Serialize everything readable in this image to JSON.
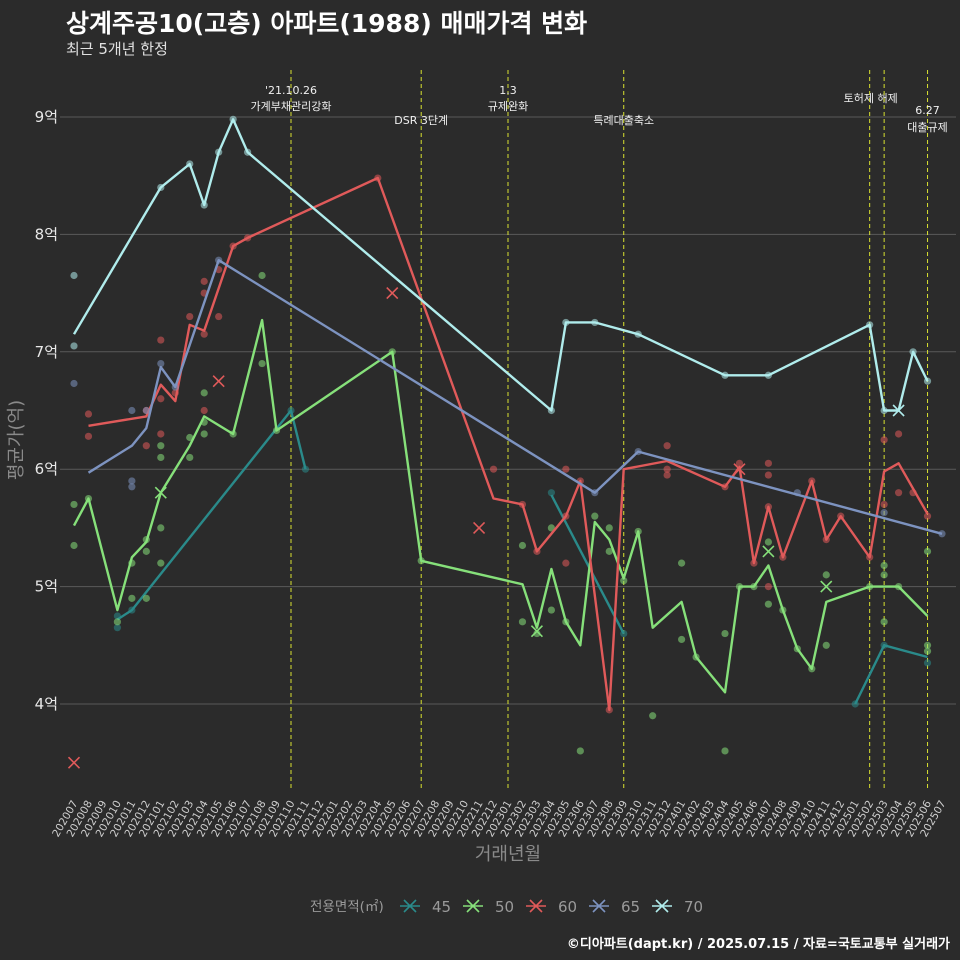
{
  "title": "상계주공10(고층) 아파트(1988) 매매가격 변화",
  "subtitle": "최근 5개년 한정",
  "caption": "©디아파트(dapt.kr) / 2025.07.15 / 자료=국토교통부 실거래가",
  "chart_data": {
    "type": "line",
    "xlabel": "거래년월",
    "ylabel": "평균가(억)",
    "ylim": [
      3.2,
      9.55
    ],
    "yticks": [
      {
        "value": 4,
        "label": "4억"
      },
      {
        "value": 5,
        "label": "5억"
      },
      {
        "value": 6,
        "label": "6억"
      },
      {
        "value": 7,
        "label": "7억"
      },
      {
        "value": 8,
        "label": "8억"
      },
      {
        "value": 9,
        "label": "9억"
      }
    ],
    "categories": [
      "202007",
      "202008",
      "202009",
      "202010",
      "202011",
      "202012",
      "202101",
      "202102",
      "202103",
      "202104",
      "202105",
      "202106",
      "202107",
      "202108",
      "202109",
      "202110",
      "202111",
      "202112",
      "202201",
      "202202",
      "202203",
      "202204",
      "202205",
      "202206",
      "202207",
      "202208",
      "202209",
      "202210",
      "202211",
      "202212",
      "202301",
      "202302",
      "202303",
      "202304",
      "202305",
      "202306",
      "202307",
      "202308",
      "202309",
      "202310",
      "202311",
      "202312",
      "202401",
      "202402",
      "202403",
      "202404",
      "202405",
      "202406",
      "202407",
      "202408",
      "202409",
      "202410",
      "202411",
      "202412",
      "202501",
      "202502",
      "202503",
      "202504",
      "202505",
      "202506",
      "202507"
    ],
    "legend": {
      "title": "전용면적(㎡)",
      "position": "bottom"
    },
    "series": [
      {
        "name": "45",
        "color": "#2a8a8a",
        "line": [
          [
            "202010",
            4.72
          ],
          [
            "202011",
            4.8
          ],
          [
            "202110",
            6.5
          ],
          [
            "202111",
            6.0
          ]
        ],
        "line2": [
          [
            "202304",
            5.78
          ],
          [
            "202309",
            4.6
          ]
        ],
        "line3": [
          [
            "202501",
            4.0
          ],
          [
            "202503",
            4.5
          ],
          [
            "202506",
            4.4
          ]
        ],
        "points": [
          [
            "202010",
            4.65
          ],
          [
            "202010",
            4.75
          ],
          [
            "202011",
            4.8
          ],
          [
            "202110",
            6.5
          ],
          [
            "202111",
            6.0
          ],
          [
            "202304",
            5.8
          ],
          [
            "202309",
            4.6
          ],
          [
            "202501",
            4.0
          ],
          [
            "202503",
            4.5
          ],
          [
            "202506",
            4.35
          ]
        ],
        "cancelled": []
      },
      {
        "name": "50",
        "color": "#86e07a",
        "line": [
          [
            "202007",
            5.52
          ],
          [
            "202008",
            5.75
          ],
          [
            "202010",
            4.8
          ],
          [
            "202011",
            5.25
          ],
          [
            "202012",
            5.38
          ],
          [
            "202101",
            5.8
          ],
          [
            "202103",
            6.2
          ],
          [
            "202104",
            6.45
          ],
          [
            "202106",
            6.3
          ],
          [
            "202108",
            7.27
          ],
          [
            "202109",
            6.33
          ],
          [
            "202205",
            7.0
          ],
          [
            "202207",
            5.22
          ],
          [
            "202302",
            5.02
          ],
          [
            "202303",
            4.65
          ],
          [
            "202304",
            5.15
          ],
          [
            "202305",
            4.7
          ],
          [
            "202306",
            4.5
          ],
          [
            "202307",
            5.55
          ],
          [
            "202308",
            5.4
          ],
          [
            "202309",
            5.07
          ],
          [
            "202310",
            5.47
          ],
          [
            "202311",
            4.65
          ],
          [
            "202401",
            4.87
          ],
          [
            "202402",
            4.4
          ],
          [
            "202404",
            4.1
          ],
          [
            "202405",
            5.0
          ],
          [
            "202406",
            5.0
          ],
          [
            "202407",
            5.18
          ],
          [
            "202408",
            4.8
          ],
          [
            "202409",
            4.47
          ],
          [
            "202410",
            4.3
          ],
          [
            "202411",
            4.87
          ],
          [
            "202502",
            5.0
          ],
          [
            "202503",
            5.0
          ],
          [
            "202504",
            5.0
          ],
          [
            "202506",
            4.75
          ]
        ],
        "points": [
          [
            "202007",
            5.7
          ],
          [
            "202007",
            5.35
          ],
          [
            "202008",
            5.75
          ],
          [
            "202010",
            4.7
          ],
          [
            "202011",
            4.9
          ],
          [
            "202011",
            5.2
          ],
          [
            "202012",
            5.3
          ],
          [
            "202012",
            5.4
          ],
          [
            "202012",
            4.9
          ],
          [
            "202101",
            6.1
          ],
          [
            "202101",
            6.2
          ],
          [
            "202101",
            5.5
          ],
          [
            "202101",
            5.2
          ],
          [
            "202103",
            6.27
          ],
          [
            "202103",
            6.1
          ],
          [
            "202104",
            6.65
          ],
          [
            "202104",
            6.4
          ],
          [
            "202104",
            6.3
          ],
          [
            "202106",
            6.3
          ],
          [
            "202108",
            7.65
          ],
          [
            "202108",
            6.9
          ],
          [
            "202109",
            6.33
          ],
          [
            "202205",
            7.0
          ],
          [
            "202207",
            5.22
          ],
          [
            "202302",
            4.7
          ],
          [
            "202302",
            5.35
          ],
          [
            "202303",
            4.6
          ],
          [
            "202304",
            5.5
          ],
          [
            "202304",
            4.8
          ],
          [
            "202305",
            4.7
          ],
          [
            "202306",
            3.6
          ],
          [
            "202307",
            5.6
          ],
          [
            "202308",
            5.5
          ],
          [
            "202308",
            5.3
          ],
          [
            "202309",
            5.05
          ],
          [
            "202310",
            5.47
          ],
          [
            "202311",
            3.9
          ],
          [
            "202401",
            5.2
          ],
          [
            "202401",
            4.55
          ],
          [
            "202402",
            4.4
          ],
          [
            "202404",
            4.6
          ],
          [
            "202404",
            3.6
          ],
          [
            "202405",
            5.0
          ],
          [
            "202406",
            5.0
          ],
          [
            "202407",
            5.38
          ],
          [
            "202407",
            4.85
          ],
          [
            "202408",
            4.8
          ],
          [
            "202409",
            4.47
          ],
          [
            "202410",
            4.3
          ],
          [
            "202411",
            5.1
          ],
          [
            "202411",
            4.5
          ],
          [
            "202502",
            5.0
          ],
          [
            "202503",
            5.18
          ],
          [
            "202503",
            5.1
          ],
          [
            "202503",
            4.7
          ],
          [
            "202504",
            5.0
          ],
          [
            "202506",
            5.3
          ],
          [
            "202506",
            4.5
          ],
          [
            "202506",
            4.45
          ]
        ],
        "cancelled": [
          [
            "202101",
            5.8
          ],
          [
            "202303",
            4.62
          ],
          [
            "202407",
            5.3
          ],
          [
            "202411",
            5.0
          ]
        ]
      },
      {
        "name": "60",
        "color": "#e05a5a",
        "line": [
          [
            "202008",
            6.37
          ],
          [
            "202012",
            6.45
          ],
          [
            "202101",
            6.72
          ],
          [
            "202102",
            6.58
          ],
          [
            "202103",
            7.23
          ],
          [
            "202104",
            7.18
          ],
          [
            "202106",
            7.9
          ],
          [
            "202107",
            7.97
          ],
          [
            "202204",
            8.48
          ],
          [
            "202212",
            5.75
          ],
          [
            "202302",
            5.7
          ],
          [
            "202303",
            5.3
          ],
          [
            "202305",
            5.6
          ],
          [
            "202306",
            5.9
          ],
          [
            "202308",
            3.95
          ],
          [
            "202309",
            6.0
          ],
          [
            "202312",
            6.07
          ],
          [
            "202404",
            5.85
          ],
          [
            "202405",
            6.02
          ],
          [
            "202406",
            5.2
          ],
          [
            "202407",
            5.68
          ],
          [
            "202408",
            5.25
          ],
          [
            "202410",
            5.9
          ],
          [
            "202411",
            5.4
          ],
          [
            "202412",
            5.6
          ],
          [
            "202502",
            5.25
          ],
          [
            "202503",
            5.98
          ],
          [
            "202504",
            6.05
          ],
          [
            "202506",
            5.62
          ]
        ],
        "points": [
          [
            "202008",
            6.47
          ],
          [
            "202008",
            6.28
          ],
          [
            "202012",
            6.5
          ],
          [
            "202012",
            6.2
          ],
          [
            "202101",
            7.1
          ],
          [
            "202101",
            6.6
          ],
          [
            "202101",
            6.3
          ],
          [
            "202102",
            6.65
          ],
          [
            "202103",
            7.3
          ],
          [
            "202104",
            7.6
          ],
          [
            "202104",
            7.5
          ],
          [
            "202104",
            7.15
          ],
          [
            "202104",
            6.5
          ],
          [
            "202105",
            7.7
          ],
          [
            "202105",
            7.3
          ],
          [
            "202106",
            7.9
          ],
          [
            "202107",
            7.97
          ],
          [
            "202204",
            8.48
          ],
          [
            "202212",
            6.0
          ],
          [
            "202302",
            5.7
          ],
          [
            "202303",
            5.3
          ],
          [
            "202305",
            5.6
          ],
          [
            "202305",
            6.0
          ],
          [
            "202305",
            5.2
          ],
          [
            "202306",
            5.9
          ],
          [
            "202308",
            3.95
          ],
          [
            "202312",
            6.0
          ],
          [
            "202312",
            6.2
          ],
          [
            "202312",
            5.95
          ],
          [
            "202404",
            5.85
          ],
          [
            "202405",
            6.05
          ],
          [
            "202406",
            5.2
          ],
          [
            "202407",
            6.05
          ],
          [
            "202407",
            5.95
          ],
          [
            "202407",
            5.68
          ],
          [
            "202407",
            5.0
          ],
          [
            "202408",
            5.25
          ],
          [
            "202410",
            5.9
          ],
          [
            "202411",
            5.4
          ],
          [
            "202412",
            5.6
          ],
          [
            "202502",
            5.25
          ],
          [
            "202503",
            6.25
          ],
          [
            "202503",
            5.7
          ],
          [
            "202504",
            6.3
          ],
          [
            "202504",
            5.8
          ],
          [
            "202505",
            5.8
          ],
          [
            "202506",
            5.6
          ]
        ],
        "cancelled": [
          [
            "202007",
            3.5
          ],
          [
            "202105",
            6.75
          ],
          [
            "202205",
            7.5
          ],
          [
            "202211",
            5.5
          ],
          [
            "202405",
            6.0
          ]
        ]
      },
      {
        "name": "65",
        "color": "#7d93c0",
        "line": [
          [
            "202008",
            5.97
          ],
          [
            "202011",
            6.2
          ],
          [
            "202012",
            6.35
          ],
          [
            "202101",
            6.87
          ],
          [
            "202102",
            6.7
          ],
          [
            "202105",
            7.78
          ],
          [
            "202307",
            5.8
          ],
          [
            "202310",
            6.15
          ],
          [
            "202507",
            5.45
          ]
        ],
        "points": [
          [
            "202007",
            6.73
          ],
          [
            "202011",
            6.5
          ],
          [
            "202011",
            5.9
          ],
          [
            "202011",
            5.85
          ],
          [
            "202012",
            6.5
          ],
          [
            "202101",
            6.9
          ],
          [
            "202102",
            6.7
          ],
          [
            "202105",
            7.78
          ],
          [
            "202307",
            5.8
          ],
          [
            "202310",
            6.15
          ],
          [
            "202409",
            5.8
          ],
          [
            "202503",
            5.63
          ],
          [
            "202507",
            5.45
          ]
        ],
        "cancelled": []
      },
      {
        "name": "70",
        "color": "#b0ecec",
        "line": [
          [
            "202007",
            7.15
          ],
          [
            "202101",
            8.4
          ],
          [
            "202103",
            8.6
          ],
          [
            "202104",
            8.25
          ],
          [
            "202105",
            8.7
          ],
          [
            "202106",
            8.98
          ],
          [
            "202107",
            8.7
          ],
          [
            "202304",
            6.5
          ],
          [
            "202305",
            7.25
          ],
          [
            "202307",
            7.25
          ],
          [
            "202310",
            7.15
          ],
          [
            "202404",
            6.8
          ],
          [
            "202407",
            6.8
          ],
          [
            "202502",
            7.23
          ],
          [
            "202503",
            6.5
          ],
          [
            "202504",
            6.5
          ],
          [
            "202505",
            7.0
          ],
          [
            "202506",
            6.75
          ]
        ],
        "points": [
          [
            "202007",
            7.65
          ],
          [
            "202007",
            7.05
          ],
          [
            "202101",
            8.4
          ],
          [
            "202103",
            8.6
          ],
          [
            "202104",
            8.25
          ],
          [
            "202105",
            8.7
          ],
          [
            "202106",
            8.98
          ],
          [
            "202107",
            8.7
          ],
          [
            "202304",
            6.5
          ],
          [
            "202305",
            7.25
          ],
          [
            "202307",
            7.25
          ],
          [
            "202310",
            7.15
          ],
          [
            "202404",
            6.8
          ],
          [
            "202407",
            6.8
          ],
          [
            "202502",
            7.23
          ],
          [
            "202503",
            6.5
          ],
          [
            "202505",
            7.0
          ],
          [
            "202506",
            6.75
          ]
        ],
        "cancelled": [
          [
            "202504",
            6.5
          ]
        ]
      }
    ],
    "annotations": [
      {
        "x": "202110",
        "lines": [
          "'21.10.26",
          "가계부채관리강화"
        ]
      },
      {
        "x": "202207",
        "lines": [
          "DSR 3단계"
        ]
      },
      {
        "x": "202301",
        "lines": [
          "1.3",
          "규제완화"
        ]
      },
      {
        "x": "202309",
        "lines": [
          "특례대출축소"
        ]
      },
      {
        "x": "202502",
        "lines": [
          "토허제 해제"
        ]
      },
      {
        "x": "202503",
        "lines": []
      },
      {
        "x": "202506",
        "lines": [
          "6.27",
          "대출규제"
        ]
      }
    ]
  }
}
